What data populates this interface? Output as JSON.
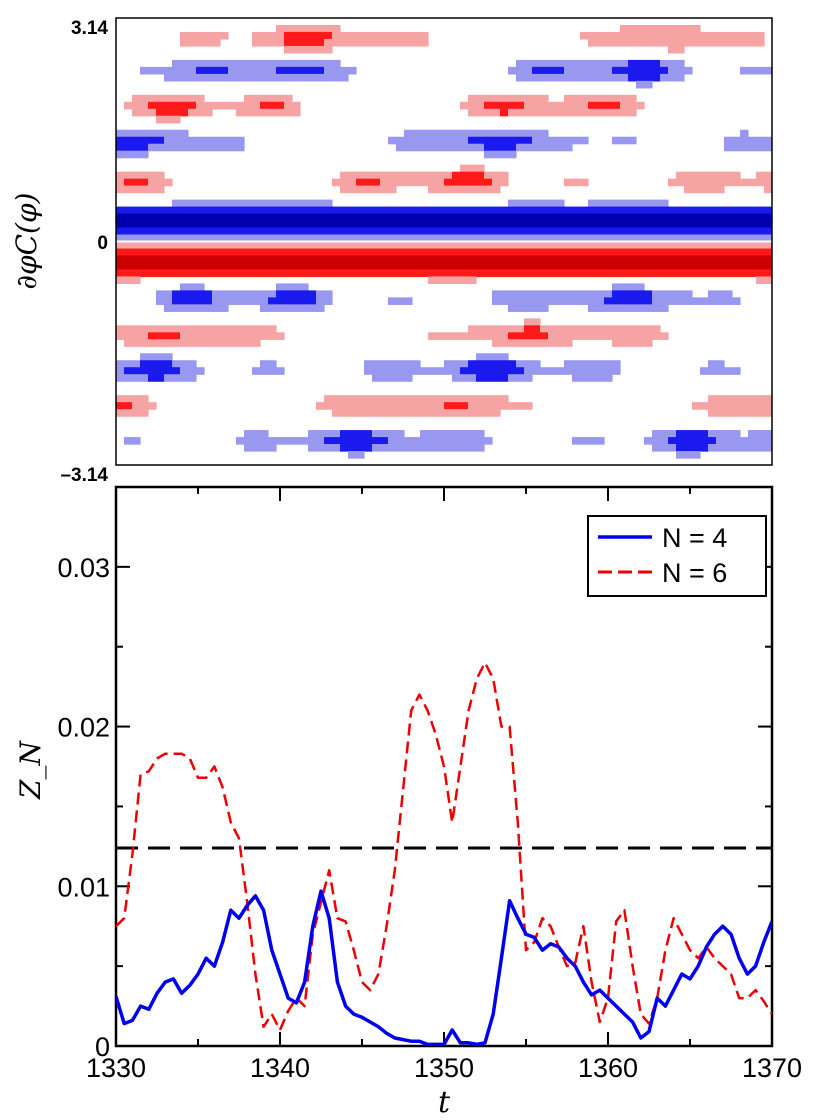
{
  "chart_data": [
    {
      "type": "heatmap",
      "ylabel": "∂φC(φ)",
      "yticks": [
        "3.14",
        "0",
        "–3.14"
      ],
      "ylim": [
        -3.14,
        3.14
      ],
      "xlim": [
        1330,
        1370
      ],
      "levels": [
        "deep-red",
        "red",
        "light-red",
        "white",
        "light-blue",
        "blue",
        "deep-blue"
      ],
      "colors": {
        "deep_red": "#cc0000",
        "red": "#ff1a1a",
        "light_red": "#f5a3a3",
        "white": "#ffffff",
        "light_blue": "#9898f0",
        "blue": "#1a1aee",
        "deep_blue": "#0000b0"
      },
      "bands": [
        {
          "phi": 2.85,
          "sign": -1,
          "amp": 0.8
        },
        {
          "phi": 2.4,
          "sign": 1,
          "amp": 0.9
        },
        {
          "phi": 1.9,
          "sign": -1,
          "amp": 0.8
        },
        {
          "phi": 1.4,
          "sign": 1,
          "amp": 0.9
        },
        {
          "phi": 0.85,
          "sign": -1,
          "amp": 0.8
        },
        {
          "phi": 0.28,
          "sign": 1,
          "amp": 1.4
        },
        {
          "phi": -0.28,
          "sign": -1,
          "amp": 1.4
        },
        {
          "phi": -0.8,
          "sign": 1,
          "amp": 0.9
        },
        {
          "phi": -1.3,
          "sign": -1,
          "amp": 0.8
        },
        {
          "phi": -1.8,
          "sign": 1,
          "amp": 0.9
        },
        {
          "phi": -2.3,
          "sign": -1,
          "amp": 0.8
        },
        {
          "phi": -2.8,
          "sign": 1,
          "amp": 0.9
        }
      ]
    },
    {
      "type": "line",
      "xlabel": "t",
      "ylabel": "Z_N",
      "xlim": [
        1330,
        1370
      ],
      "ylim": [
        0,
        0.035
      ],
      "xticks": [
        1330,
        1340,
        1350,
        1360,
        1370
      ],
      "yticks": [
        0,
        0.01,
        0.02,
        0.03
      ],
      "ytick_labels": [
        "0",
        "0.01",
        "0.02",
        "0.03"
      ],
      "legend_position": "top-right",
      "threshold": {
        "y": 0.0124,
        "style": "dashed",
        "color": "#000000"
      },
      "series": [
        {
          "name": "N = 4",
          "color": "#0000ee",
          "style": "solid",
          "x": [
            1330,
            1330.5,
            1331,
            1331.5,
            1332,
            1332.5,
            1333,
            1333.5,
            1334,
            1334.5,
            1335,
            1335.5,
            1336,
            1336.5,
            1337,
            1337.5,
            1338,
            1338.5,
            1339,
            1339.5,
            1340,
            1340.5,
            1341,
            1341.5,
            1342,
            1342.5,
            1343,
            1343.5,
            1344,
            1344.5,
            1345,
            1345.5,
            1346,
            1346.5,
            1347,
            1347.5,
            1348,
            1348.5,
            1349,
            1349.5,
            1350,
            1350.5,
            1351,
            1351.5,
            1352,
            1352.5,
            1353,
            1353.5,
            1354,
            1354.5,
            1355,
            1355.5,
            1356,
            1356.5,
            1357,
            1357.5,
            1358,
            1358.5,
            1359,
            1359.5,
            1360,
            1360.5,
            1361,
            1361.5,
            1362,
            1362.5,
            1363,
            1363.5,
            1364,
            1364.5,
            1365,
            1365.5,
            1366,
            1366.5,
            1367,
            1367.5,
            1368,
            1368.5,
            1369,
            1369.5,
            1370
          ],
          "y": [
            0.0031,
            0.0014,
            0.0016,
            0.0025,
            0.0023,
            0.0033,
            0.004,
            0.0042,
            0.0033,
            0.0038,
            0.0045,
            0.0055,
            0.005,
            0.0065,
            0.0085,
            0.008,
            0.0088,
            0.0094,
            0.0085,
            0.006,
            0.0045,
            0.003,
            0.0027,
            0.004,
            0.0075,
            0.0097,
            0.008,
            0.004,
            0.0025,
            0.002,
            0.0018,
            0.0015,
            0.0012,
            0.0008,
            0.0005,
            0.0004,
            0.0003,
            0.0003,
            0.0001,
            0.0001,
            0.0001,
            0.001,
            0.0002,
            0.0002,
            0.0001,
            0.0002,
            0.002,
            0.0055,
            0.0091,
            0.008,
            0.007,
            0.0068,
            0.006,
            0.0064,
            0.0062,
            0.0055,
            0.005,
            0.004,
            0.0032,
            0.0035,
            0.003,
            0.0025,
            0.002,
            0.0015,
            0.0005,
            0.0009,
            0.003,
            0.0025,
            0.0035,
            0.0045,
            0.0042,
            0.005,
            0.0062,
            0.007,
            0.0075,
            0.007,
            0.0055,
            0.0045,
            0.005,
            0.0065,
            0.0078
          ]
        },
        {
          "name": "N = 6",
          "color": "#ee0000",
          "style": "dashed",
          "x": [
            1330,
            1330.5,
            1331,
            1331.5,
            1332,
            1332.5,
            1333,
            1333.5,
            1334,
            1334.5,
            1335,
            1335.5,
            1336,
            1336.5,
            1337,
            1337.5,
            1338,
            1338.5,
            1339,
            1339.5,
            1340,
            1340.5,
            1341,
            1341.5,
            1342,
            1342.5,
            1343,
            1343.5,
            1344,
            1344.5,
            1345,
            1345.5,
            1346,
            1346.5,
            1347,
            1347.5,
            1348,
            1348.5,
            1349,
            1349.5,
            1350,
            1350.5,
            1351,
            1351.5,
            1352,
            1352.5,
            1353,
            1353.5,
            1354,
            1354.5,
            1355,
            1355.5,
            1356,
            1356.5,
            1357,
            1357.5,
            1358,
            1358.5,
            1359,
            1359.5,
            1360,
            1360.5,
            1361,
            1361.5,
            1362,
            1362.5,
            1363,
            1363.5,
            1364,
            1364.5,
            1365,
            1365.5,
            1366,
            1366.5,
            1367,
            1367.5,
            1368,
            1368.5,
            1369,
            1369.5,
            1370
          ],
          "y": [
            0.0075,
            0.008,
            0.012,
            0.017,
            0.0172,
            0.018,
            0.0183,
            0.0183,
            0.0183,
            0.018,
            0.0168,
            0.0168,
            0.0175,
            0.0162,
            0.014,
            0.013,
            0.009,
            0.0045,
            0.0012,
            0.002,
            0.001,
            0.0022,
            0.003,
            0.0025,
            0.007,
            0.009,
            0.011,
            0.008,
            0.0078,
            0.006,
            0.004,
            0.0035,
            0.0045,
            0.0075,
            0.011,
            0.016,
            0.021,
            0.022,
            0.021,
            0.0195,
            0.0175,
            0.014,
            0.0175,
            0.021,
            0.023,
            0.024,
            0.023,
            0.02,
            0.02,
            0.014,
            0.006,
            0.0065,
            0.008,
            0.0075,
            0.0062,
            0.005,
            0.0052,
            0.0075,
            0.004,
            0.0015,
            0.003,
            0.0078,
            0.0085,
            0.005,
            0.002,
            0.0014,
            0.003,
            0.006,
            0.008,
            0.007,
            0.006,
            0.0055,
            0.0062,
            0.0055,
            0.005,
            0.0045,
            0.003,
            0.003,
            0.0035,
            0.0028,
            0.002
          ]
        }
      ]
    }
  ]
}
